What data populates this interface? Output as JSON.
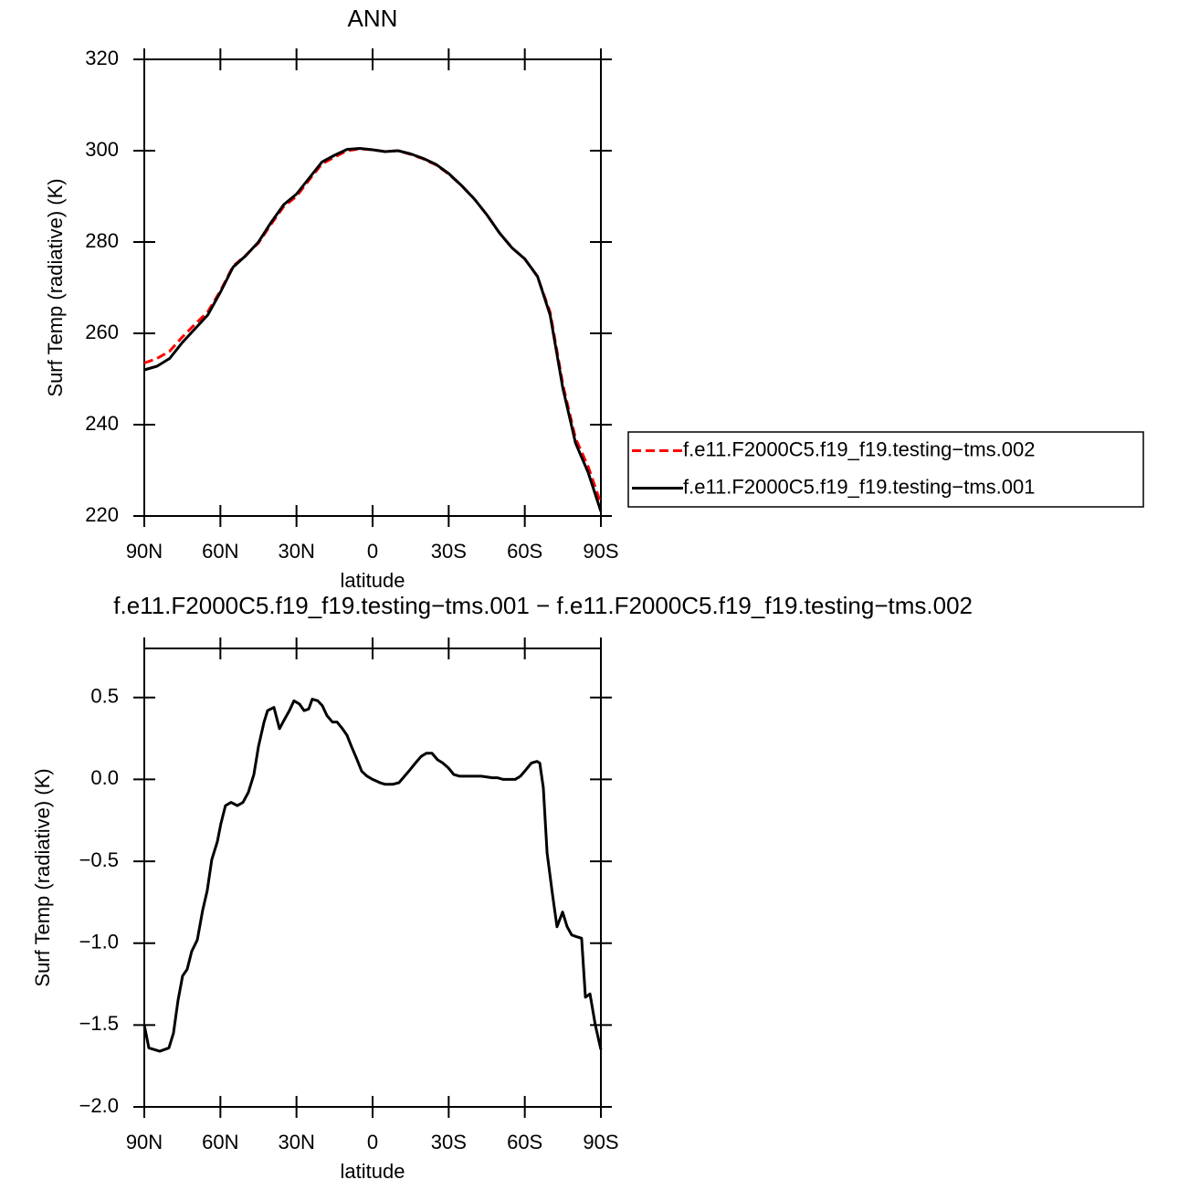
{
  "chart_data": [
    {
      "type": "line",
      "title": "ANN",
      "xlabel": "latitude",
      "ylabel": "Surf Temp (radiative) (K)",
      "x": [
        90,
        85,
        80,
        75,
        70,
        65,
        60,
        55,
        50,
        45,
        40,
        35,
        30,
        25,
        20,
        15,
        10,
        5,
        0,
        -5,
        -10,
        -15,
        -20,
        -25,
        -30,
        -35,
        -40,
        -45,
        -50,
        -55,
        -60,
        -65,
        -70,
        -75,
        -80,
        -85,
        -90
      ],
      "series": [
        {
          "name": "f.e11.F2000C5.f19_f19.testing−tms.002",
          "color": "#ff0000",
          "dashed": true,
          "values": [
            253.5,
            254.5,
            256.1,
            259.2,
            262,
            264.7,
            269.3,
            274.7,
            277.1,
            279.8,
            283.9,
            287.8,
            290.0,
            293.6,
            297.1,
            298.6,
            300.0,
            300.4,
            300.2,
            299.8,
            300.0,
            299.2,
            298.2,
            296.9,
            294.9,
            292.4,
            289.5,
            286,
            282,
            278.7,
            276.3,
            272.4,
            264.6,
            248.8,
            237.0,
            230.8,
            222.7
          ]
        },
        {
          "name": "f.e11.F2000C5.f19_f19.testing−tms.001",
          "color": "#000000",
          "dashed": false,
          "values": [
            252,
            252.8,
            254.5,
            258,
            261,
            264,
            269,
            274.5,
            277,
            280,
            284.3,
            288.2,
            290.5,
            294,
            297.5,
            299,
            300.3,
            300.5,
            300.2,
            299.8,
            300,
            299.3,
            298.3,
            297,
            295,
            292.4,
            289.5,
            286,
            282,
            278.7,
            276.3,
            272.5,
            264,
            248,
            236,
            229.5,
            221
          ]
        }
      ],
      "xlim": [
        90,
        -90
      ],
      "xticks": [
        {
          "value": 90,
          "label": "90N"
        },
        {
          "value": 60,
          "label": "60N"
        },
        {
          "value": 30,
          "label": "30N"
        },
        0,
        {
          "value": -30,
          "label": "30S"
        },
        {
          "value": -60,
          "label": "60S"
        },
        {
          "value": -90,
          "label": "90S"
        }
      ],
      "ylim": [
        220,
        320
      ],
      "yticks": [
        220,
        240,
        260,
        280,
        300,
        320
      ],
      "legend": "right"
    },
    {
      "type": "line",
      "title": "f.e11.F2000C5.f19_f19.testing−tms.001 − f.e11.F2000C5.f19_f19.testing−tms.002",
      "xlabel": "latitude",
      "ylabel": "Surf Temp (radiative) (K)",
      "x": [
        90,
        88.2,
        83.9,
        80.3,
        78.5,
        76.7,
        74.9,
        73.1,
        71.3,
        69.1,
        67,
        65.2,
        63.4,
        61.2,
        59.8,
        58,
        55.8,
        53.3,
        51.1,
        49,
        46.8,
        45,
        42.8,
        41.4,
        38.9,
        36.7,
        34.6,
        32.8,
        31,
        28.8,
        27,
        25.2,
        23.8,
        21.6,
        19.8,
        18,
        15.8,
        14,
        11.9,
        10.1,
        8.3,
        6.1,
        4.3,
        2.2,
        0,
        -2.9,
        -5,
        -7.9,
        -10.4,
        -12.6,
        -14.8,
        -16.9,
        -19.1,
        -21.2,
        -23.4,
        -25.6,
        -27.7,
        -29.9,
        -32,
        -34.2,
        -38.5,
        -42.8,
        -47.2,
        -49.3,
        -51.5,
        -54,
        -56.2,
        -58.3,
        -60.5,
        -62.6,
        -64.8,
        -65.9,
        -67.3,
        -68.8,
        -70.9,
        -72.7,
        -74.9,
        -76.7,
        -78.5,
        -80.3,
        -82.4,
        -83.9,
        -85.7,
        -87.8,
        -90
      ],
      "values": [
        -1.5,
        -1.64,
        -1.66,
        -1.64,
        -1.55,
        -1.35,
        -1.2,
        -1.16,
        -1.05,
        -0.98,
        -0.8,
        -0.68,
        -0.49,
        -0.38,
        -0.27,
        -0.16,
        -0.14,
        -0.16,
        -0.14,
        -0.08,
        0.03,
        0.2,
        0.35,
        0.42,
        0.44,
        0.31,
        0.37,
        0.42,
        0.48,
        0.46,
        0.42,
        0.43,
        0.49,
        0.48,
        0.45,
        0.39,
        0.35,
        0.35,
        0.31,
        0.27,
        0.2,
        0.12,
        0.05,
        0.02,
        0,
        -0.02,
        -0.03,
        -0.03,
        -0.02,
        0.02,
        0.06,
        0.1,
        0.14,
        0.16,
        0.16,
        0.12,
        0.1,
        0.07,
        0.03,
        0.02,
        0.02,
        0.02,
        0.01,
        0.01,
        0,
        0,
        0,
        0.02,
        0.06,
        0.1,
        0.11,
        0.1,
        -0.05,
        -0.45,
        -0.7,
        -0.9,
        -0.81,
        -0.9,
        -0.95,
        -0.96,
        -0.97,
        -1.33,
        -1.31,
        -1.5,
        -1.65
      ],
      "color": "#000000",
      "xlim": [
        90,
        -90
      ],
      "xticks": [
        {
          "value": 90,
          "label": "90N"
        },
        {
          "value": 60,
          "label": "60N"
        },
        {
          "value": 30,
          "label": "30N"
        },
        0,
        {
          "value": -30,
          "label": "30S"
        },
        {
          "value": -60,
          "label": "60S"
        },
        {
          "value": -90,
          "label": "90S"
        }
      ],
      "ylim": [
        -2.0,
        0.8
      ],
      "yticks": [
        {
          "value": -2.0,
          "label": "−2.0"
        },
        {
          "value": -1.5,
          "label": "−1.5"
        },
        {
          "value": -1.0,
          "label": "−1.0"
        },
        {
          "value": -0.5,
          "label": "−0.5"
        },
        {
          "value": 0.0,
          "label": "0.0"
        },
        0.5
      ]
    }
  ]
}
